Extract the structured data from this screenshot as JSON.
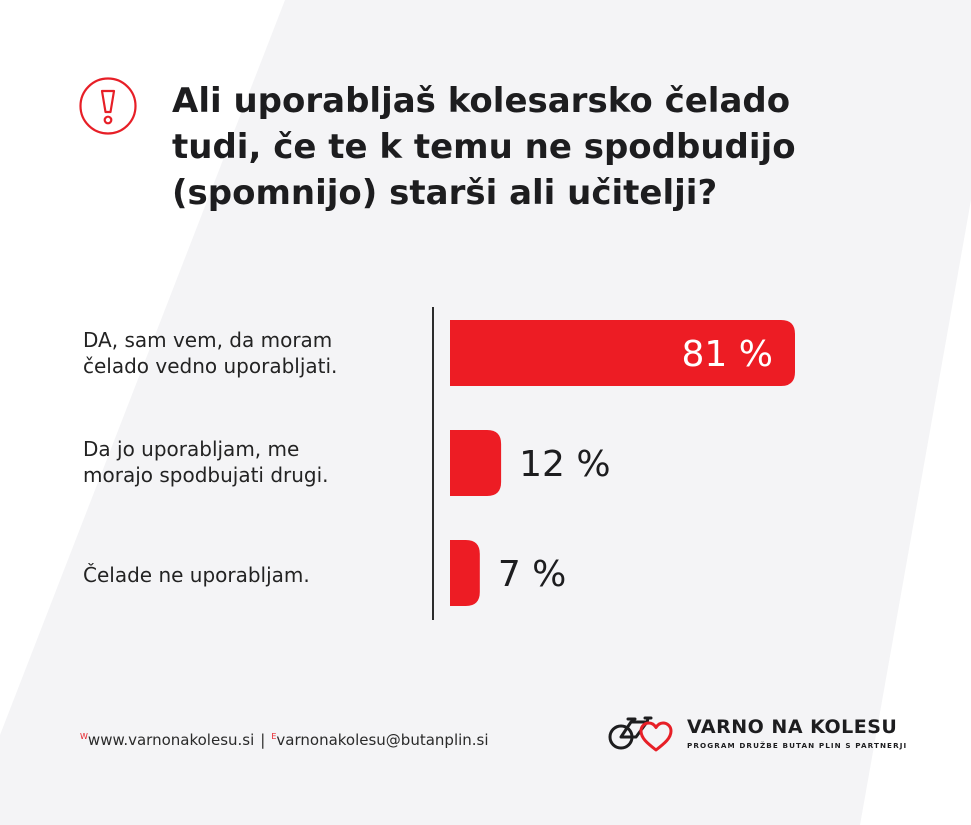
{
  "question": {
    "lines": [
      "Ali uporabljaš kolesarsko čelado",
      "tudi, če te k temu ne spodbudijo",
      "(spomnijo) starši ali učitelji?"
    ]
  },
  "chart_data": {
    "type": "bar",
    "orientation": "horizontal",
    "categories": [
      "DA, sam vem, da moram čelado vedno uporabljati.",
      "Da jo uporabljam, me morajo spodbujati drugi.",
      "Čelade ne uporabljam."
    ],
    "category_lines": [
      [
        "DA, sam vem, da moram",
        "čelado vedno uporabljati."
      ],
      [
        "Da jo uporabljam, me",
        "morajo spodbujati drugi."
      ],
      [
        "Čelade ne uporabljam."
      ]
    ],
    "values": [
      81,
      12,
      7
    ],
    "data_labels": [
      "81 %",
      "12 %",
      "7 %"
    ],
    "unit": "%",
    "xlim": [
      0,
      81
    ],
    "grid": false,
    "bar_color": "#ed1c24"
  },
  "footer": {
    "web_prefix": "W",
    "web": "www.varnonakolesu.si",
    "separator": "|",
    "email_prefix": "E",
    "email": "varnonakolesu@butanplin.si"
  },
  "logo": {
    "name": "VARNO NA KOLESU",
    "tagline": "PROGRAM DRUŽBE BUTAN PLIN S PARTNERJI",
    "accent": "#e71f27"
  },
  "colors": {
    "accent": "#ed1c24",
    "stripe": "#f4f4f6",
    "text": "#1d1d1f"
  }
}
